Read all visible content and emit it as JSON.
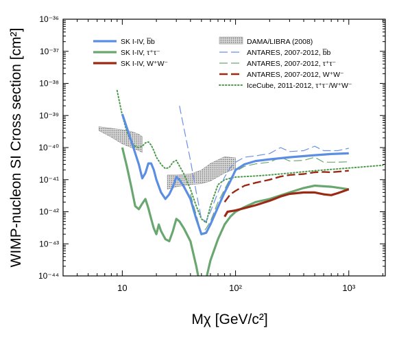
{
  "chart_data": {
    "type": "line",
    "title": "",
    "xlabel": "Mχ [GeV/c²]",
    "ylabel": "WIMP-nucleon SI Cross section [cm²]",
    "x_scale": "log",
    "y_scale": "log",
    "xlim": [
      3,
      2100
    ],
    "ylim": [
      1e-44,
      1e-36
    ],
    "x_ticks": [
      {
        "value": 10,
        "label": "10"
      },
      {
        "value": 100,
        "label": "10²"
      },
      {
        "value": 1000,
        "label": "10³"
      }
    ],
    "y_ticks": [
      {
        "value": 1e-36,
        "label": "10⁻³⁶"
      },
      {
        "value": 1e-37,
        "label": "10⁻³⁷"
      },
      {
        "value": 1e-38,
        "label": "10⁻³⁸"
      },
      {
        "value": 1e-39,
        "label": "10⁻³⁹"
      },
      {
        "value": 1e-40,
        "label": "10⁻⁴⁰"
      },
      {
        "value": 1e-41,
        "label": "10⁻⁴¹"
      },
      {
        "value": 1e-42,
        "label": "10⁻⁴²"
      },
      {
        "value": 1e-43,
        "label": "10⁻⁴³"
      },
      {
        "value": 1e-44,
        "label": "10⁻⁴⁴"
      }
    ],
    "grid": false,
    "legend_placement": "top",
    "series": [
      {
        "name": "SK I-IV, b̅b",
        "color": "#5b8de3",
        "style": "solid",
        "width": 3.2,
        "points": [
          [
            10,
            1.1e-39
          ],
          [
            12,
            1.6e-40
          ],
          [
            14,
            3e-41
          ],
          [
            15,
            1.1e-41
          ],
          [
            16,
            1.6e-41
          ],
          [
            17,
            3.2e-41
          ],
          [
            18,
            3.2e-41
          ],
          [
            19,
            2e-41
          ],
          [
            20,
            1e-41
          ],
          [
            22,
            4e-42
          ],
          [
            24,
            2.5e-42
          ],
          [
            26,
            3.5e-42
          ],
          [
            28,
            6e-42
          ],
          [
            30,
            1.2e-41
          ],
          [
            32,
            1e-41
          ],
          [
            35,
            6e-42
          ],
          [
            40,
            2.5e-42
          ],
          [
            45,
            6e-43
          ],
          [
            50,
            2e-43
          ],
          [
            55,
            2.2e-43
          ],
          [
            60,
            4e-43
          ],
          [
            70,
            1.4e-42
          ],
          [
            80,
            4e-42
          ],
          [
            90,
            9e-42
          ],
          [
            100,
            2e-41
          ],
          [
            120,
            3e-41
          ],
          [
            150,
            3.8e-41
          ],
          [
            200,
            4.3e-41
          ],
          [
            300,
            5e-41
          ],
          [
            500,
            5.8e-41
          ],
          [
            700,
            6.3e-41
          ],
          [
            1000,
            6.6e-41
          ]
        ]
      },
      {
        "name": "SK I-IV, τ⁺τ⁻",
        "color": "#6aa66f",
        "style": "solid",
        "width": 3.2,
        "points": [
          [
            10,
            1e-40
          ],
          [
            11,
            2.5e-41
          ],
          [
            12,
            6e-42
          ],
          [
            13,
            1.5e-42
          ],
          [
            14,
            1.2e-42
          ],
          [
            15,
            1.8e-42
          ],
          [
            16,
            2.5e-42
          ],
          [
            17,
            1.3e-42
          ],
          [
            18,
            6e-43
          ],
          [
            19,
            3e-43
          ],
          [
            20,
            2e-43
          ],
          [
            21,
            4e-43
          ],
          [
            22,
            2.5e-43
          ],
          [
            24,
            1.4e-43
          ],
          [
            26,
            1.2e-43
          ],
          [
            28,
            2.5e-43
          ],
          [
            30,
            6e-43
          ],
          [
            32,
            5e-43
          ],
          [
            35,
            3e-43
          ],
          [
            40,
            1.2e-43
          ],
          [
            45,
            2e-44
          ],
          [
            50,
            3e-45
          ],
          [
            55,
            8e-45
          ],
          [
            60,
            3e-44
          ],
          [
            70,
            1.4e-43
          ],
          [
            80,
            4e-43
          ],
          [
            90,
            7e-43
          ],
          [
            100,
            1e-42
          ],
          [
            120,
            1.4e-42
          ],
          [
            150,
            2e-42
          ],
          [
            200,
            2.5e-42
          ],
          [
            300,
            4e-42
          ],
          [
            400,
            5.5e-42
          ],
          [
            500,
            6.5e-42
          ],
          [
            700,
            6e-42
          ],
          [
            1000,
            5e-42
          ]
        ]
      },
      {
        "name": "SK I-IV, W⁺W⁻",
        "color": "#9a2a16",
        "style": "solid",
        "width": 3.2,
        "points": [
          [
            80,
            7e-43
          ],
          [
            85,
            1e-42
          ],
          [
            100,
            1.1e-42
          ],
          [
            120,
            1.3e-42
          ],
          [
            150,
            1.6e-42
          ],
          [
            200,
            2.2e-42
          ],
          [
            250,
            3e-42
          ],
          [
            300,
            3.6e-42
          ],
          [
            400,
            4e-42
          ],
          [
            500,
            4e-42
          ],
          [
            600,
            3.5e-42
          ],
          [
            700,
            3.3e-42
          ],
          [
            800,
            3.8e-42
          ],
          [
            1000,
            5e-42
          ]
        ]
      },
      {
        "name": "ANTARES, 2007-2012, b̅b",
        "color": "#6a8fe6",
        "style": "dash",
        "width": 1.2,
        "points": [
          [
            32,
            2e-39
          ],
          [
            35,
            4e-40
          ],
          [
            40,
            4e-41
          ],
          [
            45,
            4e-42
          ],
          [
            50,
            6e-43
          ],
          [
            55,
            5e-43
          ],
          [
            60,
            1e-42
          ],
          [
            70,
            4e-42
          ],
          [
            80,
            1.2e-41
          ],
          [
            90,
            2.4e-41
          ],
          [
            100,
            3.5e-41
          ],
          [
            120,
            5e-41
          ],
          [
            150,
            5.5e-41
          ],
          [
            200,
            6.5e-41
          ],
          [
            250,
            1e-40
          ],
          [
            300,
            7.5e-41
          ],
          [
            400,
            8e-41
          ],
          [
            500,
            1.1e-40
          ],
          [
            600,
            8e-41
          ],
          [
            700,
            8e-41
          ],
          [
            800,
            8e-41
          ],
          [
            1000,
            9.5e-41
          ]
        ]
      },
      {
        "name": "ANTARES, 2007-2012, τ⁺τ⁻",
        "color": "#6aa66f",
        "style": "dash",
        "width": 1.2,
        "points": [
          [
            40,
            3.5e-42
          ],
          [
            45,
            8e-43
          ],
          [
            50,
            2e-43
          ],
          [
            55,
            3e-43
          ],
          [
            60,
            5e-43
          ],
          [
            70,
            2e-42
          ],
          [
            80,
            5e-42
          ],
          [
            90,
            1.1e-41
          ],
          [
            100,
            1.8e-41
          ],
          [
            120,
            2.6e-41
          ],
          [
            150,
            3.1e-41
          ],
          [
            200,
            3.5e-41
          ],
          [
            250,
            5e-41
          ],
          [
            300,
            3.8e-41
          ],
          [
            400,
            4e-41
          ],
          [
            500,
            5e-41
          ],
          [
            600,
            3.5e-41
          ],
          [
            800,
            3.5e-41
          ],
          [
            1000,
            3.6e-41
          ]
        ]
      },
      {
        "name": "ANTARES, 2007-2012, W⁺W⁻",
        "color": "#9a2a16",
        "style": "dash",
        "width": 2.4,
        "points": [
          [
            80,
            2e-42
          ],
          [
            90,
            3.5e-42
          ],
          [
            100,
            4.5e-42
          ],
          [
            120,
            6.5e-42
          ],
          [
            150,
            8e-42
          ],
          [
            200,
            1e-41
          ],
          [
            250,
            1.25e-41
          ],
          [
            300,
            1.4e-41
          ],
          [
            400,
            1.5e-41
          ],
          [
            500,
            1.7e-41
          ],
          [
            600,
            1.75e-41
          ],
          [
            700,
            1.7e-41
          ],
          [
            1000,
            1.9e-41
          ]
        ]
      },
      {
        "name": "IceCube, 2011-2012, τ⁺τ⁻/W⁺W⁻",
        "color": "#4a9a4a",
        "style": "dot",
        "width": 2,
        "points": [
          [
            9,
            6e-39
          ],
          [
            10,
            1e-39
          ],
          [
            11,
            3e-40
          ],
          [
            12,
            1.5e-40
          ],
          [
            13,
            1.1e-40
          ],
          [
            14,
            1e-40
          ],
          [
            15,
            1.1e-40
          ],
          [
            16,
            1.4e-40
          ],
          [
            17,
            1.5e-40
          ],
          [
            18,
            1.2e-40
          ],
          [
            19,
            8e-41
          ],
          [
            20,
            5e-41
          ],
          [
            22,
            3e-41
          ],
          [
            24,
            2.2e-41
          ],
          [
            26,
            2.4e-41
          ],
          [
            28,
            3.5e-41
          ],
          [
            30,
            4e-41
          ],
          [
            35,
            1.5e-41
          ],
          [
            40,
            5e-42
          ],
          [
            45,
            1.5e-42
          ],
          [
            50,
            6e-43
          ],
          [
            55,
            4.5e-43
          ],
          [
            60,
            1.5e-42
          ],
          [
            70,
            7e-42
          ],
          [
            80,
            1e-41
          ],
          [
            100,
            1.2e-41
          ],
          [
            150,
            1.3e-41
          ],
          [
            200,
            1.4e-41
          ],
          [
            300,
            1.6e-41
          ],
          [
            500,
            1.9e-41
          ],
          [
            1000,
            2.3e-41
          ],
          [
            2000,
            2.8e-41
          ]
        ]
      }
    ],
    "regions": [
      {
        "name": "DAMA/LIBRA (2008)",
        "color": "#cfcfcf",
        "upper": [
          [
            6.2,
            4.5e-40
          ],
          [
            8,
            4e-40
          ],
          [
            10,
            3.6e-40
          ],
          [
            12,
            3.2e-40
          ],
          [
            14,
            2.6e-40
          ],
          [
            15,
            2.2e-40
          ]
        ],
        "lower": [
          [
            6.2,
            3.4e-40
          ],
          [
            8,
            2.1e-40
          ],
          [
            10,
            1.3e-40
          ],
          [
            12,
            1e-40
          ],
          [
            14,
            8e-41
          ],
          [
            15,
            7e-41
          ]
        ]
      },
      {
        "name": "DAMA/LIBRA (2008)",
        "color": "#cfcfcf",
        "upper": [
          [
            25,
            1.4e-41
          ],
          [
            30,
            1.4e-41
          ],
          [
            40,
            1.5e-41
          ],
          [
            50,
            2e-41
          ],
          [
            60,
            3.2e-41
          ],
          [
            80,
            5.2e-41
          ],
          [
            100,
            4.8e-41
          ]
        ],
        "lower": [
          [
            25,
            5e-42
          ],
          [
            30,
            6e-42
          ],
          [
            40,
            7e-42
          ],
          [
            50,
            7.5e-42
          ],
          [
            60,
            9e-42
          ],
          [
            80,
            1.6e-41
          ],
          [
            100,
            2.2e-41
          ]
        ]
      }
    ],
    "legend": {
      "left": [
        {
          "label": "SK I-IV, b̅b",
          "series": 0
        },
        {
          "label": "SK I-IV, τ⁺τ⁻",
          "series": 1
        },
        {
          "label": "SK I-IV, W⁺W⁻",
          "series": 2
        }
      ],
      "right": [
        {
          "label": "DAMA/LIBRA (2008)",
          "region": 0
        },
        {
          "label": "ANTARES, 2007-2012, b̅b",
          "series": 3
        },
        {
          "label": "ANTARES, 2007-2012, τ⁺τ⁻",
          "series": 4
        },
        {
          "label": "ANTARES, 2007-2012, W⁺W⁻",
          "series": 5
        },
        {
          "label": "IceCube, 2011-2012, τ⁺τ⁻/W⁺W⁻",
          "series": 6
        }
      ]
    }
  }
}
